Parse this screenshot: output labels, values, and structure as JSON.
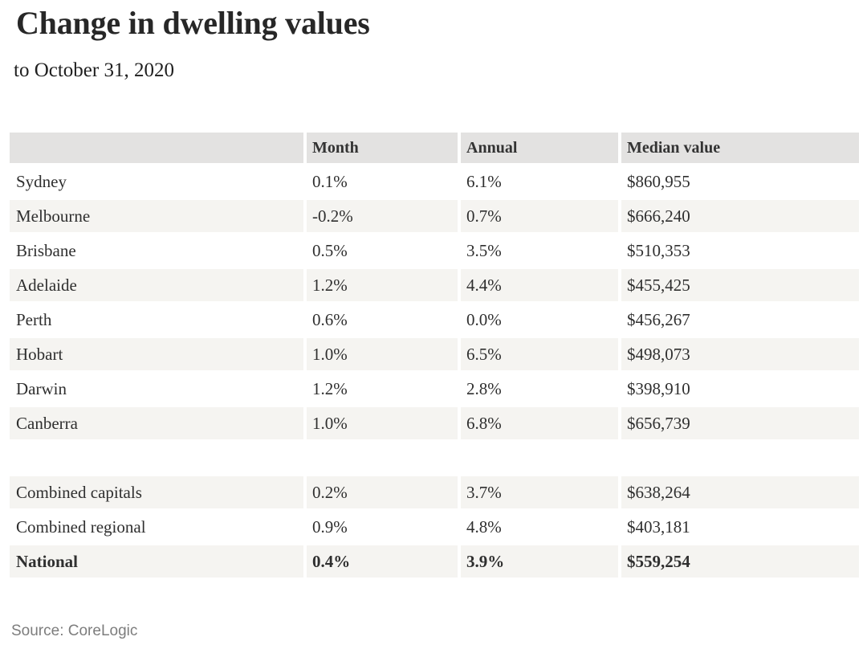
{
  "chart_data": {
    "type": "table",
    "title": "Change in dwelling values",
    "subtitle": "to October 31, 2020",
    "source": "Source: CoreLogic",
    "columns": [
      "",
      "Month",
      "Annual",
      "Median value"
    ],
    "rows": [
      {
        "label": "Sydney",
        "month": "0.1%",
        "annual": "6.1%",
        "median": "$860,955",
        "shaded": false,
        "bold": false
      },
      {
        "label": "Melbourne",
        "month": "-0.2%",
        "annual": "0.7%",
        "median": "$666,240",
        "shaded": true,
        "bold": false
      },
      {
        "label": "Brisbane",
        "month": "0.5%",
        "annual": "3.5%",
        "median": "$510,353",
        "shaded": false,
        "bold": false
      },
      {
        "label": "Adelaide",
        "month": "1.2%",
        "annual": "4.4%",
        "median": "$455,425",
        "shaded": true,
        "bold": false
      },
      {
        "label": "Perth",
        "month": "0.6%",
        "annual": "0.0%",
        "median": "$456,267",
        "shaded": false,
        "bold": false
      },
      {
        "label": "Hobart",
        "month": "1.0%",
        "annual": "6.5%",
        "median": "$498,073",
        "shaded": true,
        "bold": false
      },
      {
        "label": "Darwin",
        "month": "1.2%",
        "annual": "2.8%",
        "median": "$398,910",
        "shaded": false,
        "bold": false
      },
      {
        "label": "Canberra",
        "month": "1.0%",
        "annual": "6.8%",
        "median": "$656,739",
        "shaded": true,
        "bold": false
      },
      {
        "spacer": true
      },
      {
        "label": "Combined capitals",
        "month": "0.2%",
        "annual": "3.7%",
        "median": "$638,264",
        "shaded": true,
        "bold": false
      },
      {
        "label": "Combined regional",
        "month": "0.9%",
        "annual": "4.8%",
        "median": "$403,181",
        "shaded": false,
        "bold": false
      },
      {
        "label": "National",
        "month": "0.4%",
        "annual": "3.9%",
        "median": "$559,254",
        "shaded": true,
        "bold": true
      }
    ],
    "layout": {
      "legend": false,
      "grid": false,
      "header_position": "top"
    }
  },
  "colors": {
    "header_bg": "#e3e2e1",
    "shaded_bg": "#f5f4f1",
    "text": "#2f2f2f",
    "title_text": "#272727",
    "source_text": "#7d7d7d",
    "page_bg": "#ffffff"
  }
}
